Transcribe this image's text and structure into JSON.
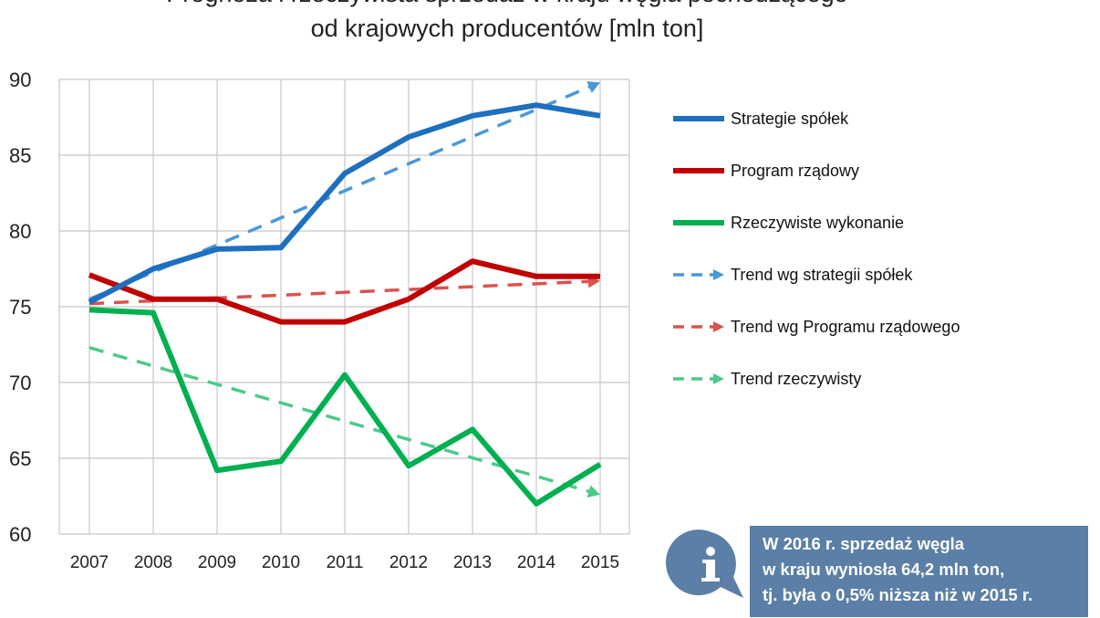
{
  "chart_data": {
    "type": "line",
    "title_lines": [
      "Prognoza i rzeczywista sprzedaż w kraju węgla pochodzącego",
      "od krajowych producentów [mln ton]"
    ],
    "x": [
      "2007",
      "2008",
      "2009",
      "2010",
      "2011",
      "2012",
      "2013",
      "2014",
      "2015"
    ],
    "ylim": [
      60,
      90
    ],
    "yticks": [
      "60",
      "65",
      "70",
      "75",
      "80",
      "85",
      "90"
    ],
    "grid": true,
    "legend_position": "right",
    "series": [
      {
        "name": "Strategie spółek",
        "style": "solid",
        "color": "#1f6fbf",
        "values": [
          75.3,
          77.5,
          78.8,
          78.9,
          83.8,
          86.2,
          87.6,
          88.3,
          87.6
        ]
      },
      {
        "name": "Program rządowy",
        "style": "solid",
        "color": "#c00000",
        "values": [
          77.1,
          75.5,
          75.5,
          74.0,
          74.0,
          75.5,
          78.0,
          77.0,
          77.0
        ]
      },
      {
        "name": "Rzeczywiste wykonanie",
        "style": "solid",
        "color": "#00b050",
        "values": [
          74.8,
          74.6,
          64.2,
          64.8,
          70.5,
          64.5,
          66.9,
          62.0,
          64.6
        ]
      },
      {
        "name": "Trend wg strategii spółek",
        "style": "dashed-arrow",
        "color": "#4a98d6",
        "values": [
          75.5,
          null,
          null,
          null,
          null,
          null,
          null,
          null,
          89.8
        ]
      },
      {
        "name": "Trend wg Programu rządowego",
        "style": "dashed-arrow",
        "color": "#d9534f",
        "values": [
          75.2,
          null,
          null,
          null,
          null,
          null,
          null,
          null,
          76.7
        ]
      },
      {
        "name": "Trend rzeczywisty",
        "style": "dashed-arrow",
        "color": "#4dc98a",
        "values": [
          72.3,
          null,
          null,
          null,
          null,
          null,
          null,
          null,
          62.6
        ]
      }
    ]
  },
  "info_box": {
    "icon": "info-speech-bubble-icon",
    "lines": [
      "W 2016 r. sprzedaż węgla",
      "w kraju wyniosła 64,2 mln ton,",
      "tj. była o 0,5% niższa niż w 2015 r."
    ],
    "background": "#5b7fa6"
  }
}
